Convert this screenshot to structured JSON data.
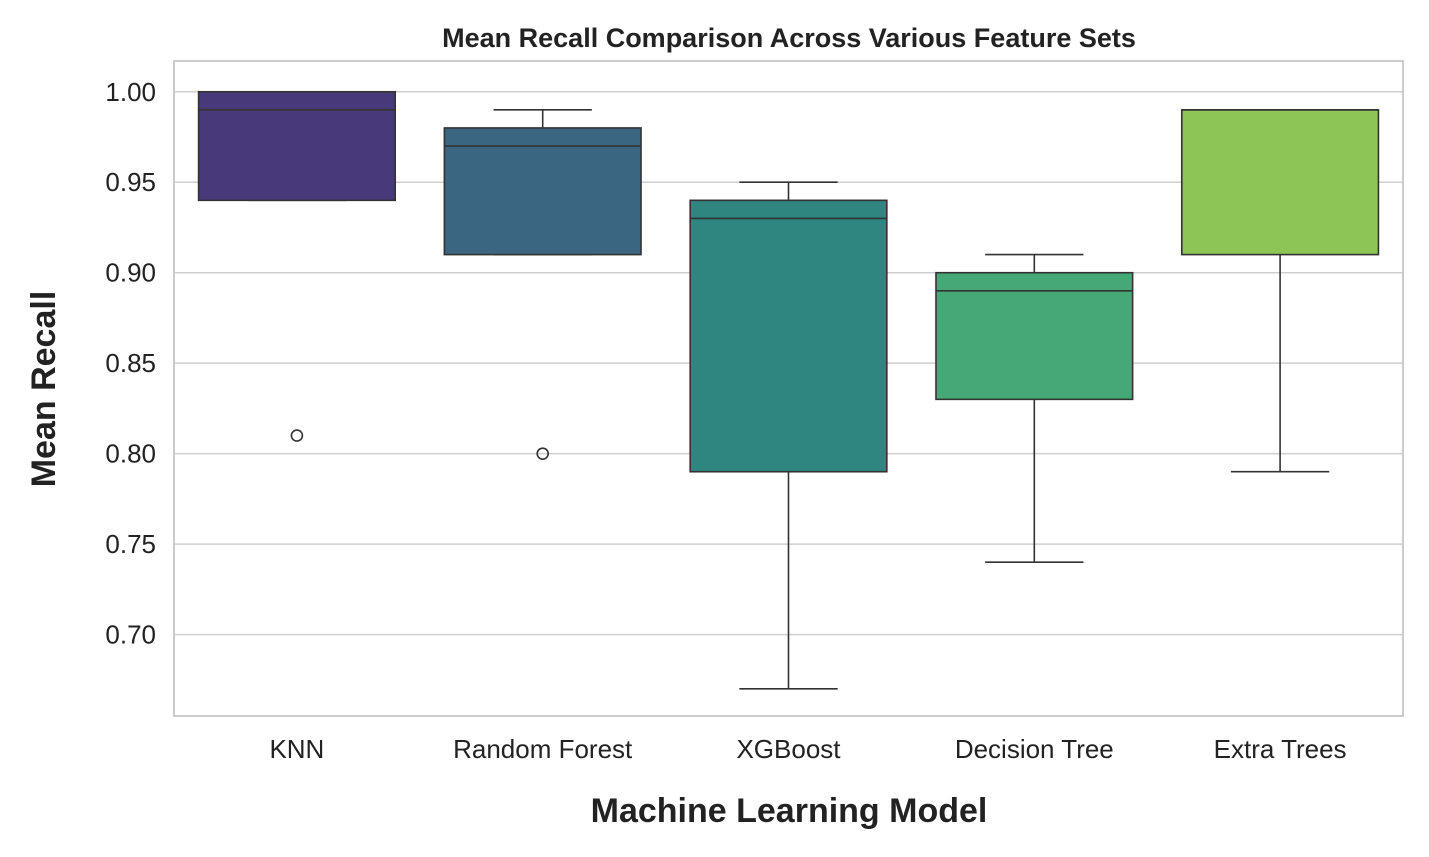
{
  "chart_data": {
    "type": "box",
    "title": "Mean Recall Comparison Across Various Feature Sets",
    "xlabel": "Machine Learning Model",
    "ylabel": "Mean Recall",
    "ylim": [
      0.655,
      1.017
    ],
    "yticks": [
      "0.70",
      "0.75",
      "0.80",
      "0.85",
      "0.90",
      "0.95",
      "1.00"
    ],
    "ytick_values": [
      0.7,
      0.75,
      0.8,
      0.85,
      0.9,
      0.95,
      1.0
    ],
    "grid": "horizontal",
    "categories": [
      "KNN",
      "Random Forest",
      "XGBoost",
      "Decision Tree",
      "Extra Trees"
    ],
    "boxes": [
      {
        "name": "KNN",
        "whisker_low": 0.94,
        "q1": 0.94,
        "median": 0.99,
        "q3": 1.0,
        "whisker_high": 1.0,
        "outliers": [
          0.81
        ],
        "color": "#48397a"
      },
      {
        "name": "Random Forest",
        "whisker_low": 0.91,
        "q1": 0.91,
        "median": 0.97,
        "q3": 0.98,
        "whisker_high": 0.99,
        "outliers": [
          0.8
        ],
        "color": "#3b6682"
      },
      {
        "name": "XGBoost",
        "whisker_low": 0.67,
        "q1": 0.79,
        "median": 0.93,
        "q3": 0.94,
        "whisker_high": 0.95,
        "outliers": [],
        "color": "#2f857f"
      },
      {
        "name": "Decision Tree",
        "whisker_low": 0.74,
        "q1": 0.83,
        "median": 0.89,
        "q3": 0.9,
        "whisker_high": 0.91,
        "outliers": [],
        "color": "#47a877"
      },
      {
        "name": "Extra Trees",
        "whisker_low": 0.79,
        "q1": 0.91,
        "median": 0.99,
        "q3": 0.99,
        "whisker_high": 0.99,
        "outliers": [],
        "color": "#8dc556"
      }
    ]
  }
}
